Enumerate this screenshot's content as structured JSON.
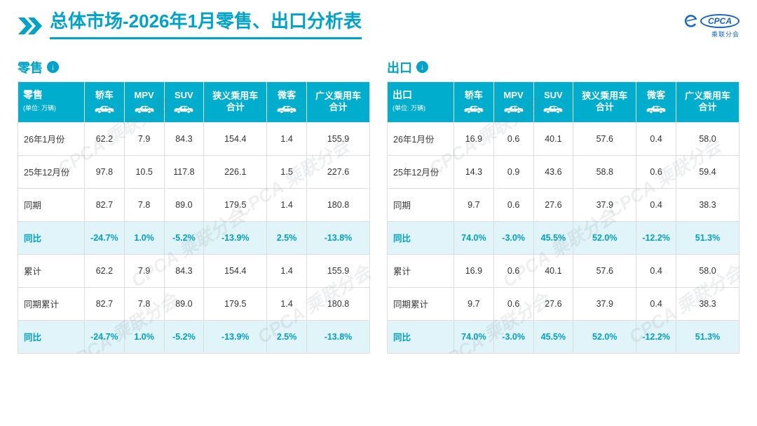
{
  "header": {
    "title": "总体市场-2026年1月零售、出口分析表",
    "logo": {
      "brand": "CPCA",
      "subtitle": "乘联分会"
    }
  },
  "watermark": "CPCA 乘联分会",
  "colors": {
    "accent": "#00a2c8",
    "table_header_bg": "#00adcd",
    "highlight_row_bg": "#e1f4f9",
    "highlight_text": "#00a0c6",
    "logo_blue": "#1565c0"
  },
  "chart_data": [
    {
      "type": "table",
      "title": "零售",
      "unit": "(单位: 万辆)",
      "columns": [
        {
          "label": "轿车",
          "icon": "car-icon"
        },
        {
          "label": "MPV",
          "icon": "car-icon"
        },
        {
          "label": "SUV",
          "icon": "car-icon"
        },
        {
          "label": "狭义乘用车",
          "label2": "合计"
        },
        {
          "label": "微客",
          "icon": "car-icon"
        },
        {
          "label": "广义乘用车",
          "label2": "合计"
        }
      ],
      "rows": [
        {
          "label": "26年1月份",
          "values": [
            "62.2",
            "7.9",
            "84.3",
            "154.4",
            "1.4",
            "155.9"
          ],
          "highlight": false
        },
        {
          "label": "25年12月份",
          "values": [
            "97.8",
            "10.5",
            "117.8",
            "226.1",
            "1.5",
            "227.6"
          ],
          "highlight": false
        },
        {
          "label": "同期",
          "values": [
            "82.7",
            "7.8",
            "89.0",
            "179.5",
            "1.4",
            "180.8"
          ],
          "highlight": false
        },
        {
          "label": "同比",
          "values": [
            "-24.7%",
            "1.0%",
            "-5.2%",
            "-13.9%",
            "2.5%",
            "-13.8%"
          ],
          "highlight": true
        },
        {
          "label": "累计",
          "values": [
            "62.2",
            "7.9",
            "84.3",
            "154.4",
            "1.4",
            "155.9"
          ],
          "highlight": false
        },
        {
          "label": "同期累计",
          "values": [
            "82.7",
            "7.8",
            "89.0",
            "179.5",
            "1.4",
            "180.8"
          ],
          "highlight": false
        },
        {
          "label": "同比",
          "values": [
            "-24.7%",
            "1.0%",
            "-5.2%",
            "-13.9%",
            "2.5%",
            "-13.8%"
          ],
          "highlight": true
        }
      ]
    },
    {
      "type": "table",
      "title": "出口",
      "unit": "(单位: 万辆)",
      "columns": [
        {
          "label": "轿车",
          "icon": "car-icon"
        },
        {
          "label": "MPV",
          "icon": "car-icon"
        },
        {
          "label": "SUV",
          "icon": "car-icon"
        },
        {
          "label": "狭义乘用车",
          "label2": "合计"
        },
        {
          "label": "微客",
          "icon": "car-icon"
        },
        {
          "label": "广义乘用车",
          "label2": "合计"
        }
      ],
      "rows": [
        {
          "label": "26年1月份",
          "values": [
            "16.9",
            "0.6",
            "40.1",
            "57.6",
            "0.4",
            "58.0"
          ],
          "highlight": false
        },
        {
          "label": "25年12月份",
          "values": [
            "14.3",
            "0.9",
            "43.6",
            "58.8",
            "0.6",
            "59.4"
          ],
          "highlight": false
        },
        {
          "label": "同期",
          "values": [
            "9.7",
            "0.6",
            "27.6",
            "37.9",
            "0.4",
            "38.3"
          ],
          "highlight": false
        },
        {
          "label": "同比",
          "values": [
            "74.0%",
            "-3.0%",
            "45.5%",
            "52.0%",
            "-12.2%",
            "51.3%"
          ],
          "highlight": true
        },
        {
          "label": "累计",
          "values": [
            "16.9",
            "0.6",
            "40.1",
            "57.6",
            "0.4",
            "58.0"
          ],
          "highlight": false
        },
        {
          "label": "同期累计",
          "values": [
            "9.7",
            "0.6",
            "27.6",
            "37.9",
            "0.4",
            "38.3"
          ],
          "highlight": false
        },
        {
          "label": "同比",
          "values": [
            "74.0%",
            "-3.0%",
            "45.5%",
            "52.0%",
            "-12.2%",
            "51.3%"
          ],
          "highlight": true
        }
      ]
    }
  ]
}
